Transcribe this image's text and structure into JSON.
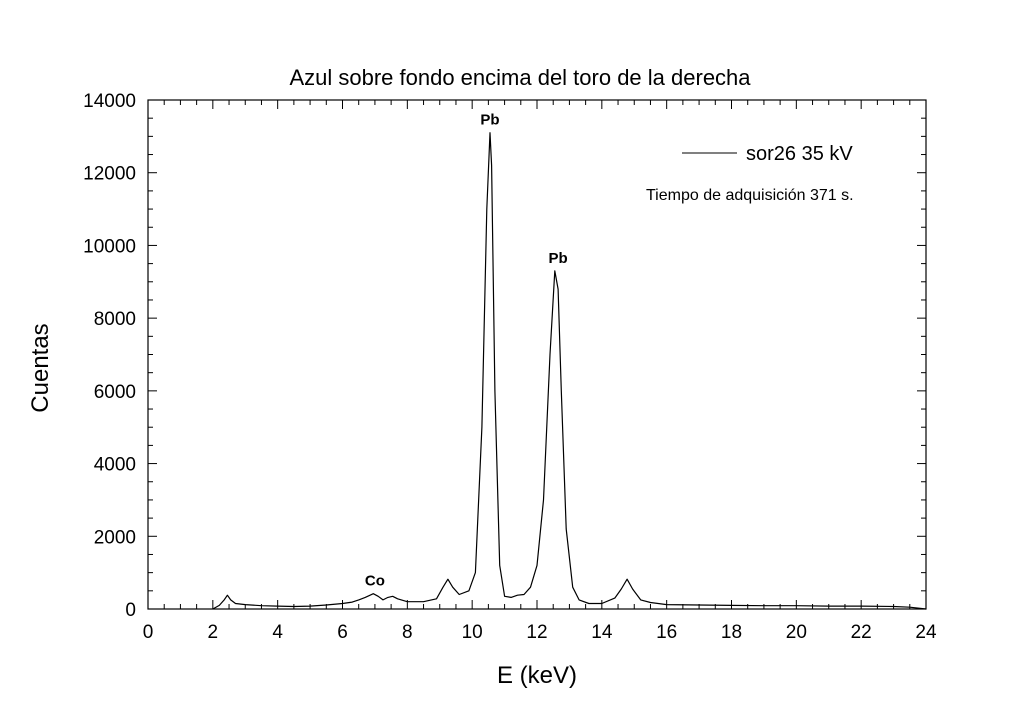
{
  "chart_data": {
    "type": "line",
    "title": "Azul sobre fondo encima del toro de la derecha",
    "xlabel": "E (keV)",
    "ylabel": "Cuentas",
    "xlim": [
      0,
      24
    ],
    "ylim": [
      0,
      14000
    ],
    "x_ticks": [
      0,
      2,
      4,
      6,
      8,
      10,
      12,
      14,
      16,
      18,
      20,
      22,
      24
    ],
    "y_ticks": [
      0,
      2000,
      4000,
      6000,
      8000,
      10000,
      12000,
      14000
    ],
    "grid": false,
    "legend_position": "top-right",
    "series": [
      {
        "name": "sor26 35 kV",
        "color": "#000000",
        "x": [
          2.0,
          2.2,
          2.35,
          2.45,
          2.55,
          2.7,
          3.0,
          3.5,
          4.0,
          4.5,
          5.0,
          5.5,
          6.0,
          6.3,
          6.5,
          6.7,
          6.85,
          6.95,
          7.1,
          7.25,
          7.4,
          7.55,
          7.7,
          8.0,
          8.5,
          8.9,
          9.1,
          9.25,
          9.4,
          9.6,
          9.9,
          10.1,
          10.3,
          10.45,
          10.55,
          10.6,
          10.7,
          10.85,
          11.0,
          11.2,
          11.4,
          11.6,
          11.8,
          12.0,
          12.2,
          12.4,
          12.55,
          12.65,
          12.75,
          12.9,
          13.1,
          13.3,
          13.6,
          14.0,
          14.4,
          14.6,
          14.78,
          14.95,
          15.2,
          15.5,
          16.0,
          17.0,
          18.0,
          19.0,
          20.0,
          21.0,
          22.0,
          23.0,
          23.5,
          24.0
        ],
        "y": [
          0,
          100,
          250,
          380,
          250,
          150,
          120,
          90,
          80,
          70,
          80,
          110,
          150,
          190,
          250,
          320,
          380,
          420,
          350,
          250,
          320,
          350,
          280,
          200,
          200,
          280,
          600,
          820,
          600,
          400,
          500,
          1000,
          5000,
          11000,
          13100,
          12200,
          6000,
          1200,
          350,
          320,
          380,
          400,
          600,
          1200,
          3000,
          7000,
          9300,
          8800,
          6000,
          2200,
          600,
          250,
          150,
          150,
          300,
          550,
          820,
          550,
          250,
          180,
          120,
          110,
          100,
          90,
          90,
          80,
          80,
          70,
          50,
          0
        ]
      }
    ],
    "annotations": [
      {
        "text": "Co",
        "x": 7.0,
        "y": 420
      },
      {
        "text": "Pb",
        "x": 10.55,
        "y": 13100
      },
      {
        "text": "Pb",
        "x": 12.65,
        "y": 9300
      }
    ],
    "note": "Tiempo de adquisición 371 s."
  }
}
